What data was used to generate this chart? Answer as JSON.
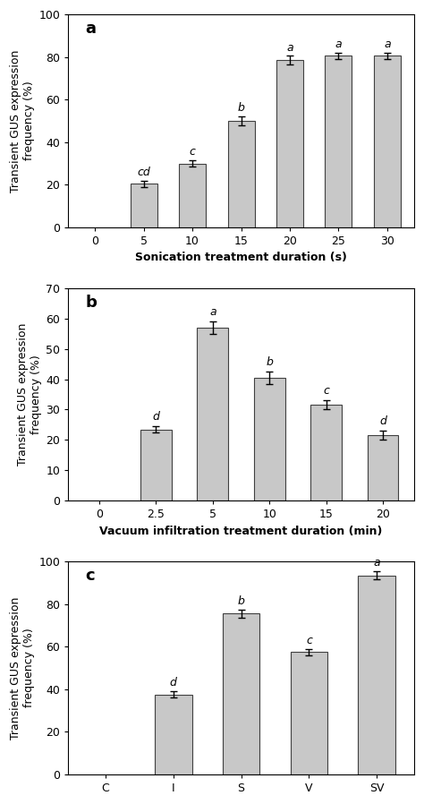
{
  "chart_a": {
    "categories": [
      "0",
      "5",
      "10",
      "15",
      "20",
      "25",
      "30"
    ],
    "values": [
      0,
      20.5,
      30.0,
      50.0,
      78.5,
      80.5,
      80.5
    ],
    "errors": [
      0,
      1.5,
      1.5,
      2.0,
      2.0,
      1.5,
      1.5
    ],
    "letters": [
      "",
      "cd",
      "c",
      "b",
      "a",
      "a",
      "a"
    ],
    "xlabel": "Sonication treatment duration (s)",
    "ylabel": "Transient GUS expression\nfrequency (%)",
    "ylim": [
      0,
      100
    ],
    "yticks": [
      0,
      20,
      40,
      60,
      80,
      100
    ],
    "panel_label": "a",
    "bar_color": "#c8c8c8",
    "bar_edge_color": "#404040"
  },
  "chart_b": {
    "categories": [
      "0",
      "2.5",
      "5",
      "10",
      "15",
      "20"
    ],
    "values": [
      0,
      23.5,
      57.0,
      40.5,
      31.5,
      21.5
    ],
    "errors": [
      0,
      1.0,
      2.0,
      2.0,
      1.5,
      1.5
    ],
    "letters": [
      "",
      "d",
      "a",
      "b",
      "c",
      "d"
    ],
    "xlabel": "Vacuum infiltration treatment duration (min)",
    "ylabel": "Transient GUS expression\nfrequency (%)",
    "ylim": [
      0,
      70
    ],
    "yticks": [
      0,
      10,
      20,
      30,
      40,
      50,
      60,
      70
    ],
    "panel_label": "b",
    "bar_color": "#c8c8c8",
    "bar_edge_color": "#404040"
  },
  "chart_c": {
    "categories": [
      "C",
      "I",
      "S",
      "V",
      "SV"
    ],
    "values": [
      0,
      37.5,
      75.5,
      57.5,
      93.5
    ],
    "errors": [
      0,
      1.5,
      2.0,
      1.5,
      2.0
    ],
    "letters": [
      "",
      "d",
      "b",
      "c",
      "a"
    ],
    "xlabel": "",
    "ylabel": "Transient GUS expression\nfrequency (%)",
    "ylim": [
      0,
      100
    ],
    "yticks": [
      0,
      20,
      40,
      60,
      80,
      100
    ],
    "panel_label": "c",
    "bar_color": "#c8c8c8",
    "bar_edge_color": "#404040"
  },
  "fig_width": 4.74,
  "fig_height": 8.98,
  "dpi": 100
}
